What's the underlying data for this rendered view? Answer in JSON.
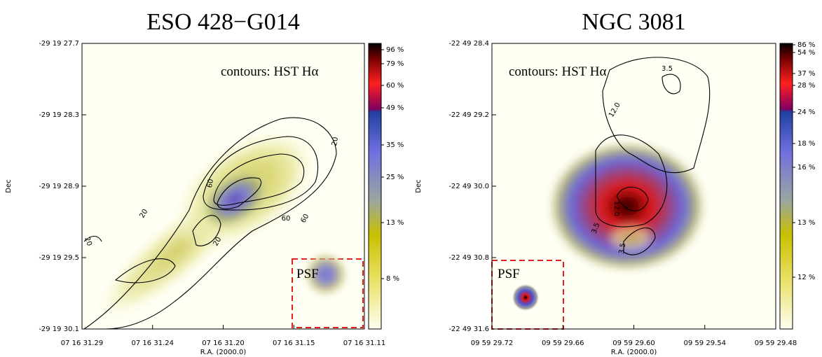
{
  "panels": [
    {
      "title": "ESO 428−G014",
      "annotation": "contours: HST Hα",
      "psf_label": "PSF",
      "y_axis_label": "Dec",
      "x_axis_label": "R.A. (2000.0)",
      "y_ticks": [
        "-29 19 27.7",
        "-29 19 28.3",
        "-29 19 28.9",
        "-29 19 29.5",
        "-29 19 30.1"
      ],
      "x_ticks": [
        "07 16 31.29",
        "07 16 31.24",
        "07 16 31.20",
        "07 16 31.15",
        "07 16 31.11"
      ],
      "colorbar_labels": [
        "96 %",
        "79 %",
        "60 %",
        "49 %",
        "35 %",
        "25 %",
        "13 %",
        "8 %"
      ],
      "contour_labels": [
        "20",
        "20",
        "20",
        "20",
        "60",
        "60",
        "60"
      ]
    },
    {
      "title": "NGC 3081",
      "annotation": "contours: HST Hα",
      "psf_label": "PSF",
      "y_axis_label": "Dec",
      "x_axis_label": "R.A. (2000.0)",
      "y_ticks": [
        "-22 49 28.4",
        "-22 49 29.2",
        "-22 49 30.0",
        "-22 49 30.8",
        "-22 49 31.6"
      ],
      "x_ticks": [
        "09 59 29.72",
        "09 59 29.66",
        "09 59 29.60",
        "09 59 29.54",
        "09 59 29.48"
      ],
      "colorbar_labels": [
        "86 %",
        "54 %",
        "37 %",
        "28 %",
        "24 %",
        "18 %",
        "16 %",
        "13 %",
        "12 %"
      ],
      "contour_labels": [
        "3.5",
        "12.0",
        "12.0",
        "3.5",
        "3.5"
      ]
    }
  ]
}
